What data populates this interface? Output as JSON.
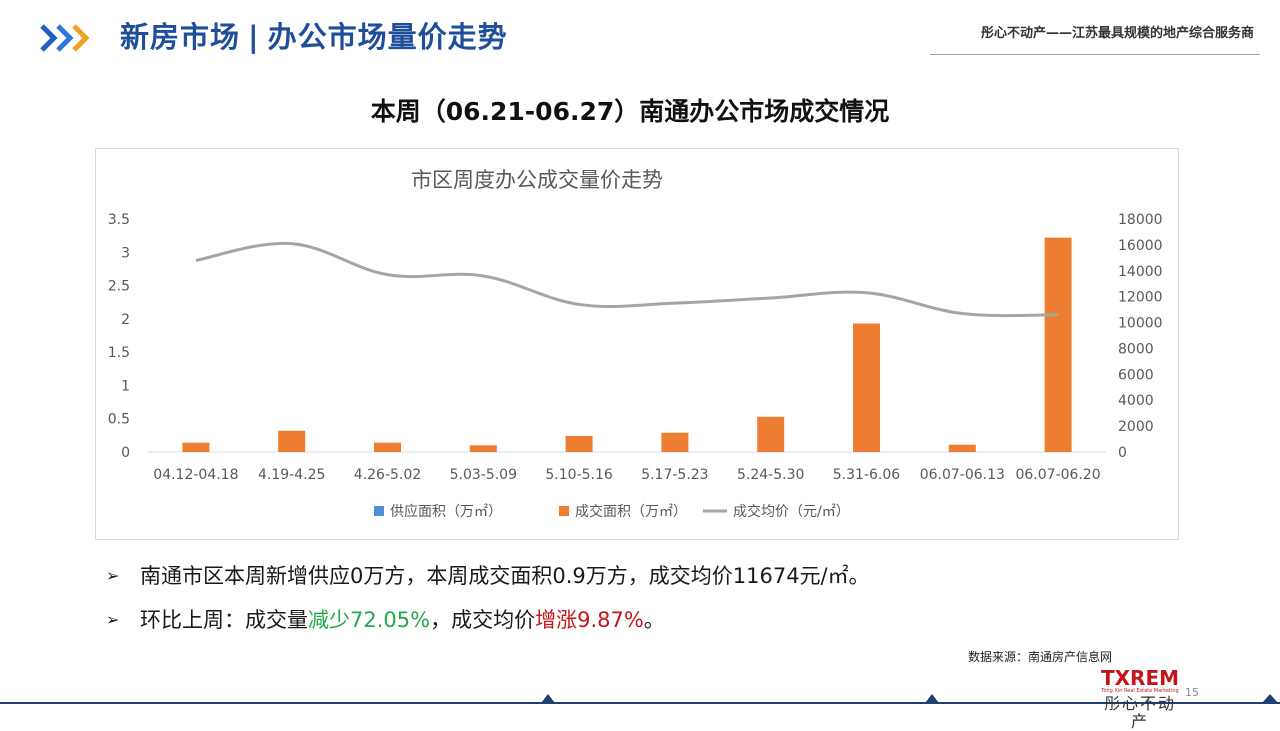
{
  "header": {
    "section": "新房市场",
    "separator": "|",
    "topic": "办公市场量价走势",
    "slogan": "彤心不动产——江苏最具规模的地产综合服务商"
  },
  "subtitle": "本周（06.21-06.27）南通办公市场成交情况",
  "chart_data": {
    "type": "bar",
    "title": "市区周度办公成交量价走势",
    "categories": [
      "04.12-04.18",
      "4.19-4.25",
      "4.26-5.02",
      "5.03-5.09",
      "5.10-5.16",
      "5.17-5.23",
      "5.24-5.30",
      "5.31-6.06",
      "06.07-06.13",
      "06.07-06.20"
    ],
    "series": [
      {
        "name": "供应面积（万㎡）",
        "type": "bar",
        "axis": "left",
        "color": "#4f8fd4",
        "values": [
          0,
          0,
          0,
          0,
          0,
          0,
          0,
          0,
          0,
          0
        ]
      },
      {
        "name": "成交面积（万㎡）",
        "type": "bar",
        "axis": "left",
        "color": "#ed7d31",
        "values": [
          0.14,
          0.32,
          0.14,
          0.1,
          0.24,
          0.29,
          0.53,
          1.93,
          0.11,
          3.22
        ]
      },
      {
        "name": "成交均价（元/㎡）",
        "type": "line",
        "axis": "right",
        "color": "#a5a5a5",
        "values": [
          14800,
          16100,
          13700,
          13600,
          11400,
          11500,
          11900,
          12300,
          10700,
          10600
        ]
      }
    ],
    "y_left": {
      "range": [
        0,
        3.5
      ],
      "ticks": [
        "3.5",
        "3",
        "2.5",
        "2",
        "1.5",
        "1",
        "0.5",
        "0"
      ]
    },
    "y_right": {
      "range": [
        0,
        18000
      ],
      "ticks": [
        "18000",
        "16000",
        "14000",
        "12000",
        "10000",
        "8000",
        "6000",
        "4000",
        "2000",
        "0"
      ]
    },
    "legend": "bottom",
    "grid": false
  },
  "bullets": {
    "b1": "南通市区本周新增供应0万方，本周成交面积0.9万方，成交均价11674元/㎡。",
    "b2_prefix": "环比上周：成交量",
    "b2_volume": "减少72.05%",
    "b2_mid": "，成交均价",
    "b2_price": "增涨9.87%",
    "b2_suffix": "。",
    "arrow": "➢"
  },
  "source": "数据来源：南通房产信息网",
  "logo": {
    "brand": "TXREM",
    "tagline": "Tong Xin Real Estate Marketing",
    "name": "彤心不动产"
  },
  "page_number": "15",
  "colors": {
    "accent_blue": "#1f4e9a",
    "accent_orange": "#ed7d31",
    "green": "#22a84a",
    "red": "#c4151c"
  }
}
